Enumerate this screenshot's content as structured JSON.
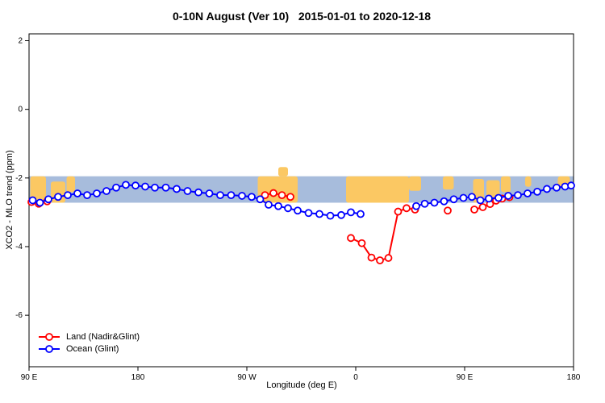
{
  "chart_data": {
    "type": "line",
    "title": "0-10N August (Ver 10)   2015-01-01 to 2020-12-18",
    "xlabel": "Longitude (deg E)",
    "ylabel": "XCO2 - MLO trend (ppm)",
    "xlim": [
      90,
      540
    ],
    "ylim": [
      -7.5,
      2.2
    ],
    "grid": false,
    "x_ticks": {
      "values": [
        90,
        180,
        270,
        360,
        450,
        540
      ],
      "labels": [
        "90 E",
        "180",
        "90 W",
        "0",
        "90 E",
        "180"
      ]
    },
    "y_ticks": {
      "values": [
        2,
        0,
        -2,
        -4,
        -6
      ],
      "labels": [
        "2",
        "0",
        "-2",
        "-4",
        "-6"
      ]
    },
    "map_band": {
      "y_top": -1.95,
      "y_bottom": -2.72,
      "ocean_color": "#a7bcdc",
      "land_color": "#fbc863",
      "land_segments": [
        {
          "x0": 91,
          "x1": 104,
          "t": 0,
          "b": 1
        },
        {
          "x0": 108,
          "x1": 120,
          "t": 0.2,
          "b": 1
        },
        {
          "x0": 121,
          "x1": 128,
          "t": 0,
          "b": 0.6
        },
        {
          "x0": 279,
          "x1": 312,
          "t": 0,
          "b": 1
        },
        {
          "x0": 296,
          "x1": 304,
          "t": -0.35,
          "b": 0
        },
        {
          "x0": 352,
          "x1": 404,
          "t": 0,
          "b": 1
        },
        {
          "x0": 404,
          "x1": 414,
          "t": 0,
          "b": 0.55
        },
        {
          "x0": 432,
          "x1": 441,
          "t": 0,
          "b": 0.5
        },
        {
          "x0": 457,
          "x1": 466,
          "t": 0.1,
          "b": 1
        },
        {
          "x0": 468,
          "x1": 479,
          "t": 0.15,
          "b": 1
        },
        {
          "x0": 480,
          "x1": 488,
          "t": 0,
          "b": 0.6
        },
        {
          "x0": 500,
          "x1": 505,
          "t": 0,
          "b": 0.4
        },
        {
          "x0": 527,
          "x1": 537,
          "t": 0,
          "b": 0.45
        }
      ]
    },
    "series": [
      {
        "id": "land",
        "name": "Land (Nadir&Glint)",
        "color": "#ff0000",
        "segments": [
          [
            [
              92,
              -2.7
            ],
            [
              98,
              -2.75
            ],
            [
              105,
              -2.68
            ]
          ],
          [
            [
              285,
              -2.5
            ],
            [
              292,
              -2.44
            ],
            [
              299,
              -2.5
            ],
            [
              306,
              -2.55
            ]
          ],
          [
            [
              356,
              -3.75
            ],
            [
              365,
              -3.9
            ],
            [
              373,
              -4.32
            ],
            [
              380,
              -4.4
            ],
            [
              387,
              -4.33
            ],
            [
              395,
              -2.98
            ],
            [
              402,
              -2.88
            ],
            [
              409,
              -2.92
            ]
          ],
          [
            [
              436,
              -2.95
            ]
          ],
          [
            [
              458,
              -2.92
            ],
            [
              465,
              -2.85
            ],
            [
              471,
              -2.76
            ],
            [
              476,
              -2.66
            ],
            [
              481,
              -2.6
            ],
            [
              487,
              -2.56
            ]
          ]
        ]
      },
      {
        "id": "ocean",
        "name": "Ocean (Glint)",
        "color": "#0000ff",
        "segments": [
          [
            [
              93,
              -2.65
            ],
            [
              99,
              -2.72
            ],
            [
              106,
              -2.62
            ],
            [
              114,
              -2.55
            ],
            [
              122,
              -2.5
            ],
            [
              130,
              -2.45
            ],
            [
              138,
              -2.5
            ],
            [
              146,
              -2.45
            ],
            [
              154,
              -2.38
            ],
            [
              162,
              -2.28
            ],
            [
              170,
              -2.2
            ],
            [
              178,
              -2.22
            ],
            [
              186,
              -2.25
            ],
            [
              194,
              -2.28
            ],
            [
              203,
              -2.28
            ],
            [
              212,
              -2.32
            ],
            [
              221,
              -2.38
            ],
            [
              230,
              -2.42
            ],
            [
              239,
              -2.45
            ],
            [
              248,
              -2.5
            ],
            [
              257,
              -2.5
            ],
            [
              266,
              -2.52
            ],
            [
              274,
              -2.55
            ],
            [
              281,
              -2.62
            ],
            [
              288,
              -2.78
            ],
            [
              296,
              -2.82
            ],
            [
              304,
              -2.88
            ],
            [
              312,
              -2.95
            ],
            [
              321,
              -3.02
            ],
            [
              330,
              -3.05
            ],
            [
              339,
              -3.1
            ],
            [
              348,
              -3.08
            ],
            [
              356,
              -3.0
            ],
            [
              364,
              -3.05
            ]
          ],
          [
            [
              410,
              -2.82
            ],
            [
              417,
              -2.75
            ],
            [
              425,
              -2.72
            ],
            [
              433,
              -2.68
            ],
            [
              441,
              -2.62
            ],
            [
              449,
              -2.58
            ],
            [
              456,
              -2.55
            ],
            [
              463,
              -2.65
            ],
            [
              470,
              -2.6
            ],
            [
              478,
              -2.58
            ],
            [
              486,
              -2.52
            ],
            [
              494,
              -2.5
            ],
            [
              502,
              -2.45
            ],
            [
              510,
              -2.4
            ],
            [
              518,
              -2.32
            ],
            [
              526,
              -2.28
            ],
            [
              533,
              -2.25
            ],
            [
              538,
              -2.22
            ]
          ]
        ]
      }
    ],
    "legend": {
      "position": "bottom-left",
      "items": [
        {
          "label": "Land (Nadir&Glint)",
          "color": "#ff0000"
        },
        {
          "label": "Ocean (Glint)",
          "color": "#0000ff"
        }
      ]
    }
  }
}
